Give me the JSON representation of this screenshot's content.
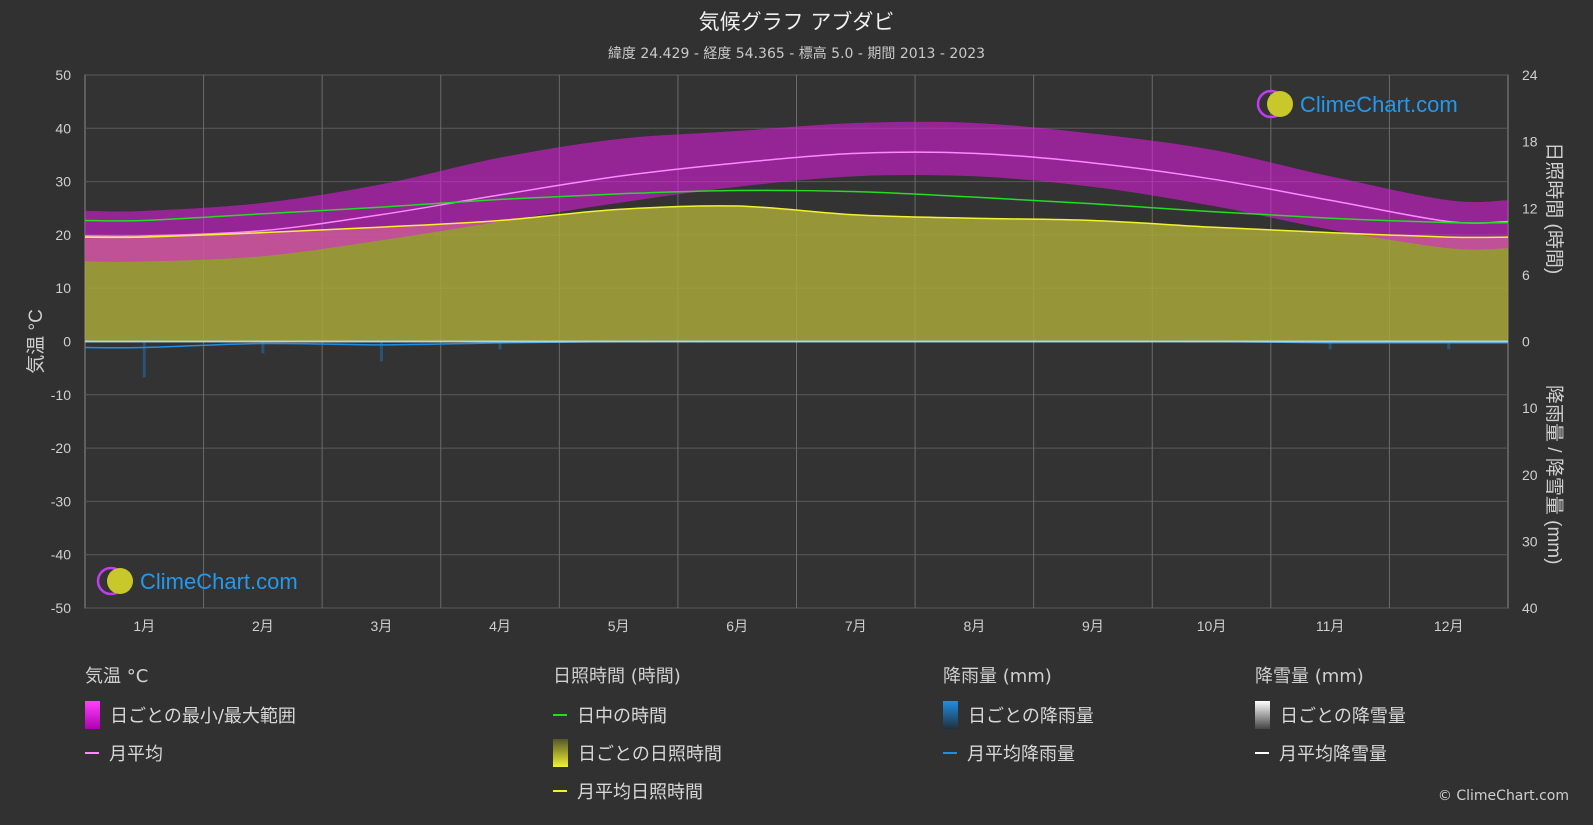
{
  "title": "気候グラフ アブダビ",
  "subtitle": "緯度 24.429 - 経度 54.365 - 標高 5.0 - 期間 2013 - 2023",
  "watermark": "ClimeChart.com",
  "copyright": "© ClimeChart.com",
  "colors": {
    "background": "#313131",
    "temp_range": "#e619e6",
    "temp_avg": "#ff88ff",
    "daylight": "#22dd22",
    "sunshine_fill": "#a8a83a",
    "sunshine_avg": "#f2f230",
    "rain": "#1e8fe6",
    "rain_avg": "#1e8fe6",
    "snow_avg": "#ffffff",
    "brand": "#2299ee"
  },
  "legend": {
    "temp": {
      "heading": "気温 °C",
      "range": "日ごとの最小/最大範囲",
      "avg": "月平均"
    },
    "sun": {
      "heading": "日照時間 (時間)",
      "daylight": "日中の時間",
      "daily": "日ごとの日照時間",
      "avg": "月平均日照時間"
    },
    "rain": {
      "heading": "降雨量 (mm)",
      "daily": "日ごとの降雨量",
      "avg": "月平均降雨量"
    },
    "snow": {
      "heading": "降雪量 (mm)",
      "daily": "日ごとの降雪量",
      "avg": "月平均降雪量"
    }
  },
  "chart_data": {
    "type": "line",
    "categories": [
      "1月",
      "2月",
      "3月",
      "4月",
      "5月",
      "6月",
      "7月",
      "8月",
      "9月",
      "10月",
      "11月",
      "12月"
    ],
    "y_left": {
      "label": "気温 °C",
      "range": [
        -50,
        50
      ],
      "ticks": [
        50,
        40,
        30,
        20,
        10,
        0,
        -10,
        -20,
        -30,
        -40,
        -50
      ]
    },
    "y_right_top": {
      "label": "日照時間 (時間)",
      "range": [
        0,
        24
      ],
      "ticks": [
        24,
        18,
        12,
        6,
        0
      ]
    },
    "y_right_bottom": {
      "label": "降雨量 / 降雪量 (mm)",
      "range": [
        0,
        40
      ],
      "ticks": [
        10,
        20,
        30,
        40
      ]
    },
    "grid": true,
    "series": [
      {
        "name": "月平均",
        "axis": "temperature",
        "values": [
          19.8,
          20.8,
          23.8,
          27.5,
          31.0,
          33.5,
          35.3,
          35.3,
          33.5,
          30.5,
          26.5,
          22.5
        ]
      },
      {
        "name": "日中の時間",
        "axis": "hours",
        "values": [
          10.9,
          11.5,
          12.1,
          12.8,
          13.3,
          13.6,
          13.5,
          13.0,
          12.4,
          11.7,
          11.1,
          10.7
        ]
      },
      {
        "name": "月平均日照時間",
        "axis": "hours",
        "values": [
          9.4,
          9.8,
          10.3,
          10.9,
          11.9,
          12.2,
          11.4,
          11.1,
          10.9,
          10.3,
          9.8,
          9.4
        ]
      },
      {
        "name": "月平均降雨量",
        "axis": "precipitation_mm",
        "values": [
          0.9,
          0.3,
          0.5,
          0.2,
          0.0,
          0.0,
          0.0,
          0.0,
          0.0,
          0.0,
          0.2,
          0.2
        ]
      },
      {
        "name": "月平均降雪量",
        "axis": "precipitation_mm",
        "values": [
          0,
          0,
          0,
          0,
          0,
          0,
          0,
          0,
          0,
          0,
          0,
          0
        ]
      }
    ],
    "daily_temperature_range": {
      "name": "日ごとの最小/最大範囲",
      "min": [
        15.0,
        16.0,
        19.0,
        22.5,
        26.0,
        29.0,
        31.0,
        31.0,
        29.0,
        25.5,
        21.0,
        17.5
      ],
      "max": [
        24.5,
        26.0,
        29.5,
        34.5,
        38.0,
        39.5,
        41.0,
        41.0,
        39.0,
        36.0,
        31.0,
        26.5
      ]
    }
  }
}
